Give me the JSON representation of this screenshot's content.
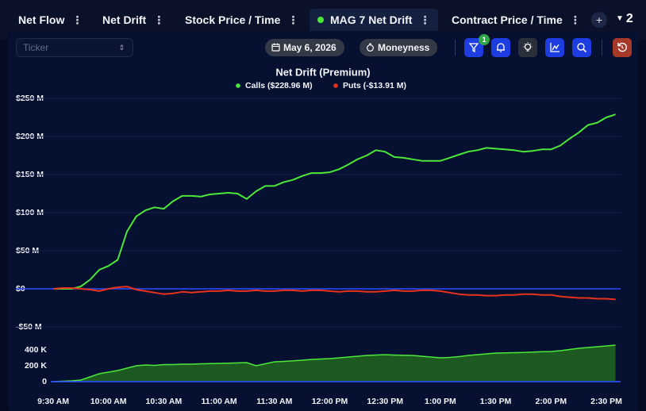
{
  "tabs": [
    {
      "label": "Net Flow",
      "active": false
    },
    {
      "label": "Net Drift",
      "active": false
    },
    {
      "label": "Stock Price / Time",
      "active": false
    },
    {
      "label": "MAG 7 Net Drift",
      "active": true
    },
    {
      "label": "Contract Price / Time",
      "active": false
    }
  ],
  "add_tab": "+",
  "tab_count": "2",
  "toolbar": {
    "ticker_placeholder": "Ticker",
    "date": "May 6, 2026",
    "moneyness": "Moneyness",
    "filter_badge": "1"
  },
  "chart_data": [
    {
      "type": "line",
      "title": "Net Drift (Premium)",
      "categories": [
        "9:30 AM",
        null,
        null,
        null,
        null,
        null,
        "10:00 AM",
        null,
        null,
        null,
        null,
        null,
        "10:30 AM",
        null,
        null,
        null,
        null,
        null,
        "11:00 AM",
        null,
        null,
        null,
        null,
        null,
        "11:30 AM",
        null,
        null,
        null,
        null,
        null,
        "12:00 PM",
        null,
        null,
        null,
        null,
        null,
        "12:30 PM",
        null,
        null,
        null,
        null,
        null,
        "1:00 PM",
        null,
        null,
        null,
        null,
        null,
        "1:30 PM",
        null,
        null,
        null,
        null,
        null,
        "2:00 PM",
        null,
        null,
        null,
        null,
        null,
        "2:30 PM",
        null
      ],
      "series": [
        {
          "name": "Calls ($228.96 M)",
          "color": "#4be83a",
          "values": [
            0,
            0,
            0,
            3,
            12,
            25,
            30,
            38,
            75,
            95,
            103,
            107,
            105,
            115,
            122,
            122,
            121,
            124,
            125,
            126,
            125,
            118,
            128,
            135,
            135,
            140,
            143,
            148,
            152,
            152,
            153,
            157,
            163,
            170,
            175,
            182,
            180,
            173,
            172,
            170,
            168,
            168,
            168,
            172,
            176,
            180,
            182,
            185,
            184,
            183,
            182,
            180,
            181,
            183,
            183,
            188,
            197,
            205,
            215,
            218,
            225,
            229
          ]
        },
        {
          "name": "Puts (-$13.91 M)",
          "color": "#e8321e",
          "values": [
            0,
            1,
            1,
            0,
            -1,
            -3,
            0,
            2,
            3,
            -1,
            -3,
            -5,
            -7,
            -6,
            -4,
            -5,
            -4,
            -3,
            -3,
            -2,
            -3,
            -3,
            -2,
            -3,
            -3,
            -2,
            -2,
            -3,
            -2,
            -2,
            -3,
            -4,
            -3,
            -3,
            -4,
            -4,
            -3,
            -2,
            -3,
            -3,
            -2,
            -2,
            -3,
            -5,
            -7,
            -8,
            -8,
            -9,
            -9,
            -8,
            -8,
            -7,
            -7,
            -8,
            -8,
            -10,
            -11,
            -12,
            -12,
            -13,
            -13,
            -14
          ]
        }
      ],
      "ylim": [
        -50,
        250
      ],
      "yticks": [
        {
          "value": 250,
          "label": "$250 M"
        },
        {
          "value": 200,
          "label": "$200 M"
        },
        {
          "value": 150,
          "label": "$150 M"
        },
        {
          "value": 100,
          "label": "$100 M"
        },
        {
          "value": 50,
          "label": "$50 M"
        },
        {
          "value": 0,
          "label": "$0"
        },
        {
          "value": -50,
          "label": "-$50 M"
        }
      ],
      "grid": true,
      "zero_line_color": "#2b4bff"
    },
    {
      "type": "area",
      "series": [
        {
          "color": "#4be83a",
          "fill": "#1d5a22",
          "values": [
            0,
            5,
            10,
            20,
            60,
            100,
            120,
            140,
            170,
            200,
            210,
            205,
            215,
            215,
            220,
            220,
            225,
            228,
            230,
            232,
            236,
            240,
            200,
            225,
            250,
            255,
            262,
            270,
            280,
            285,
            290,
            300,
            310,
            320,
            330,
            335,
            340,
            335,
            332,
            330,
            320,
            310,
            300,
            305,
            315,
            330,
            340,
            350,
            360,
            362,
            365,
            368,
            372,
            378,
            380,
            390,
            405,
            420,
            430,
            440,
            450,
            460
          ],
          "scale": 1000
        }
      ],
      "ylim": [
        0,
        500000
      ],
      "yticks": [
        {
          "value": 0,
          "label": "0"
        },
        {
          "value": 200000,
          "label": "200 K"
        },
        {
          "value": 400000,
          "label": "400 K"
        }
      ],
      "zero_line_color": "#2b4bff"
    }
  ]
}
